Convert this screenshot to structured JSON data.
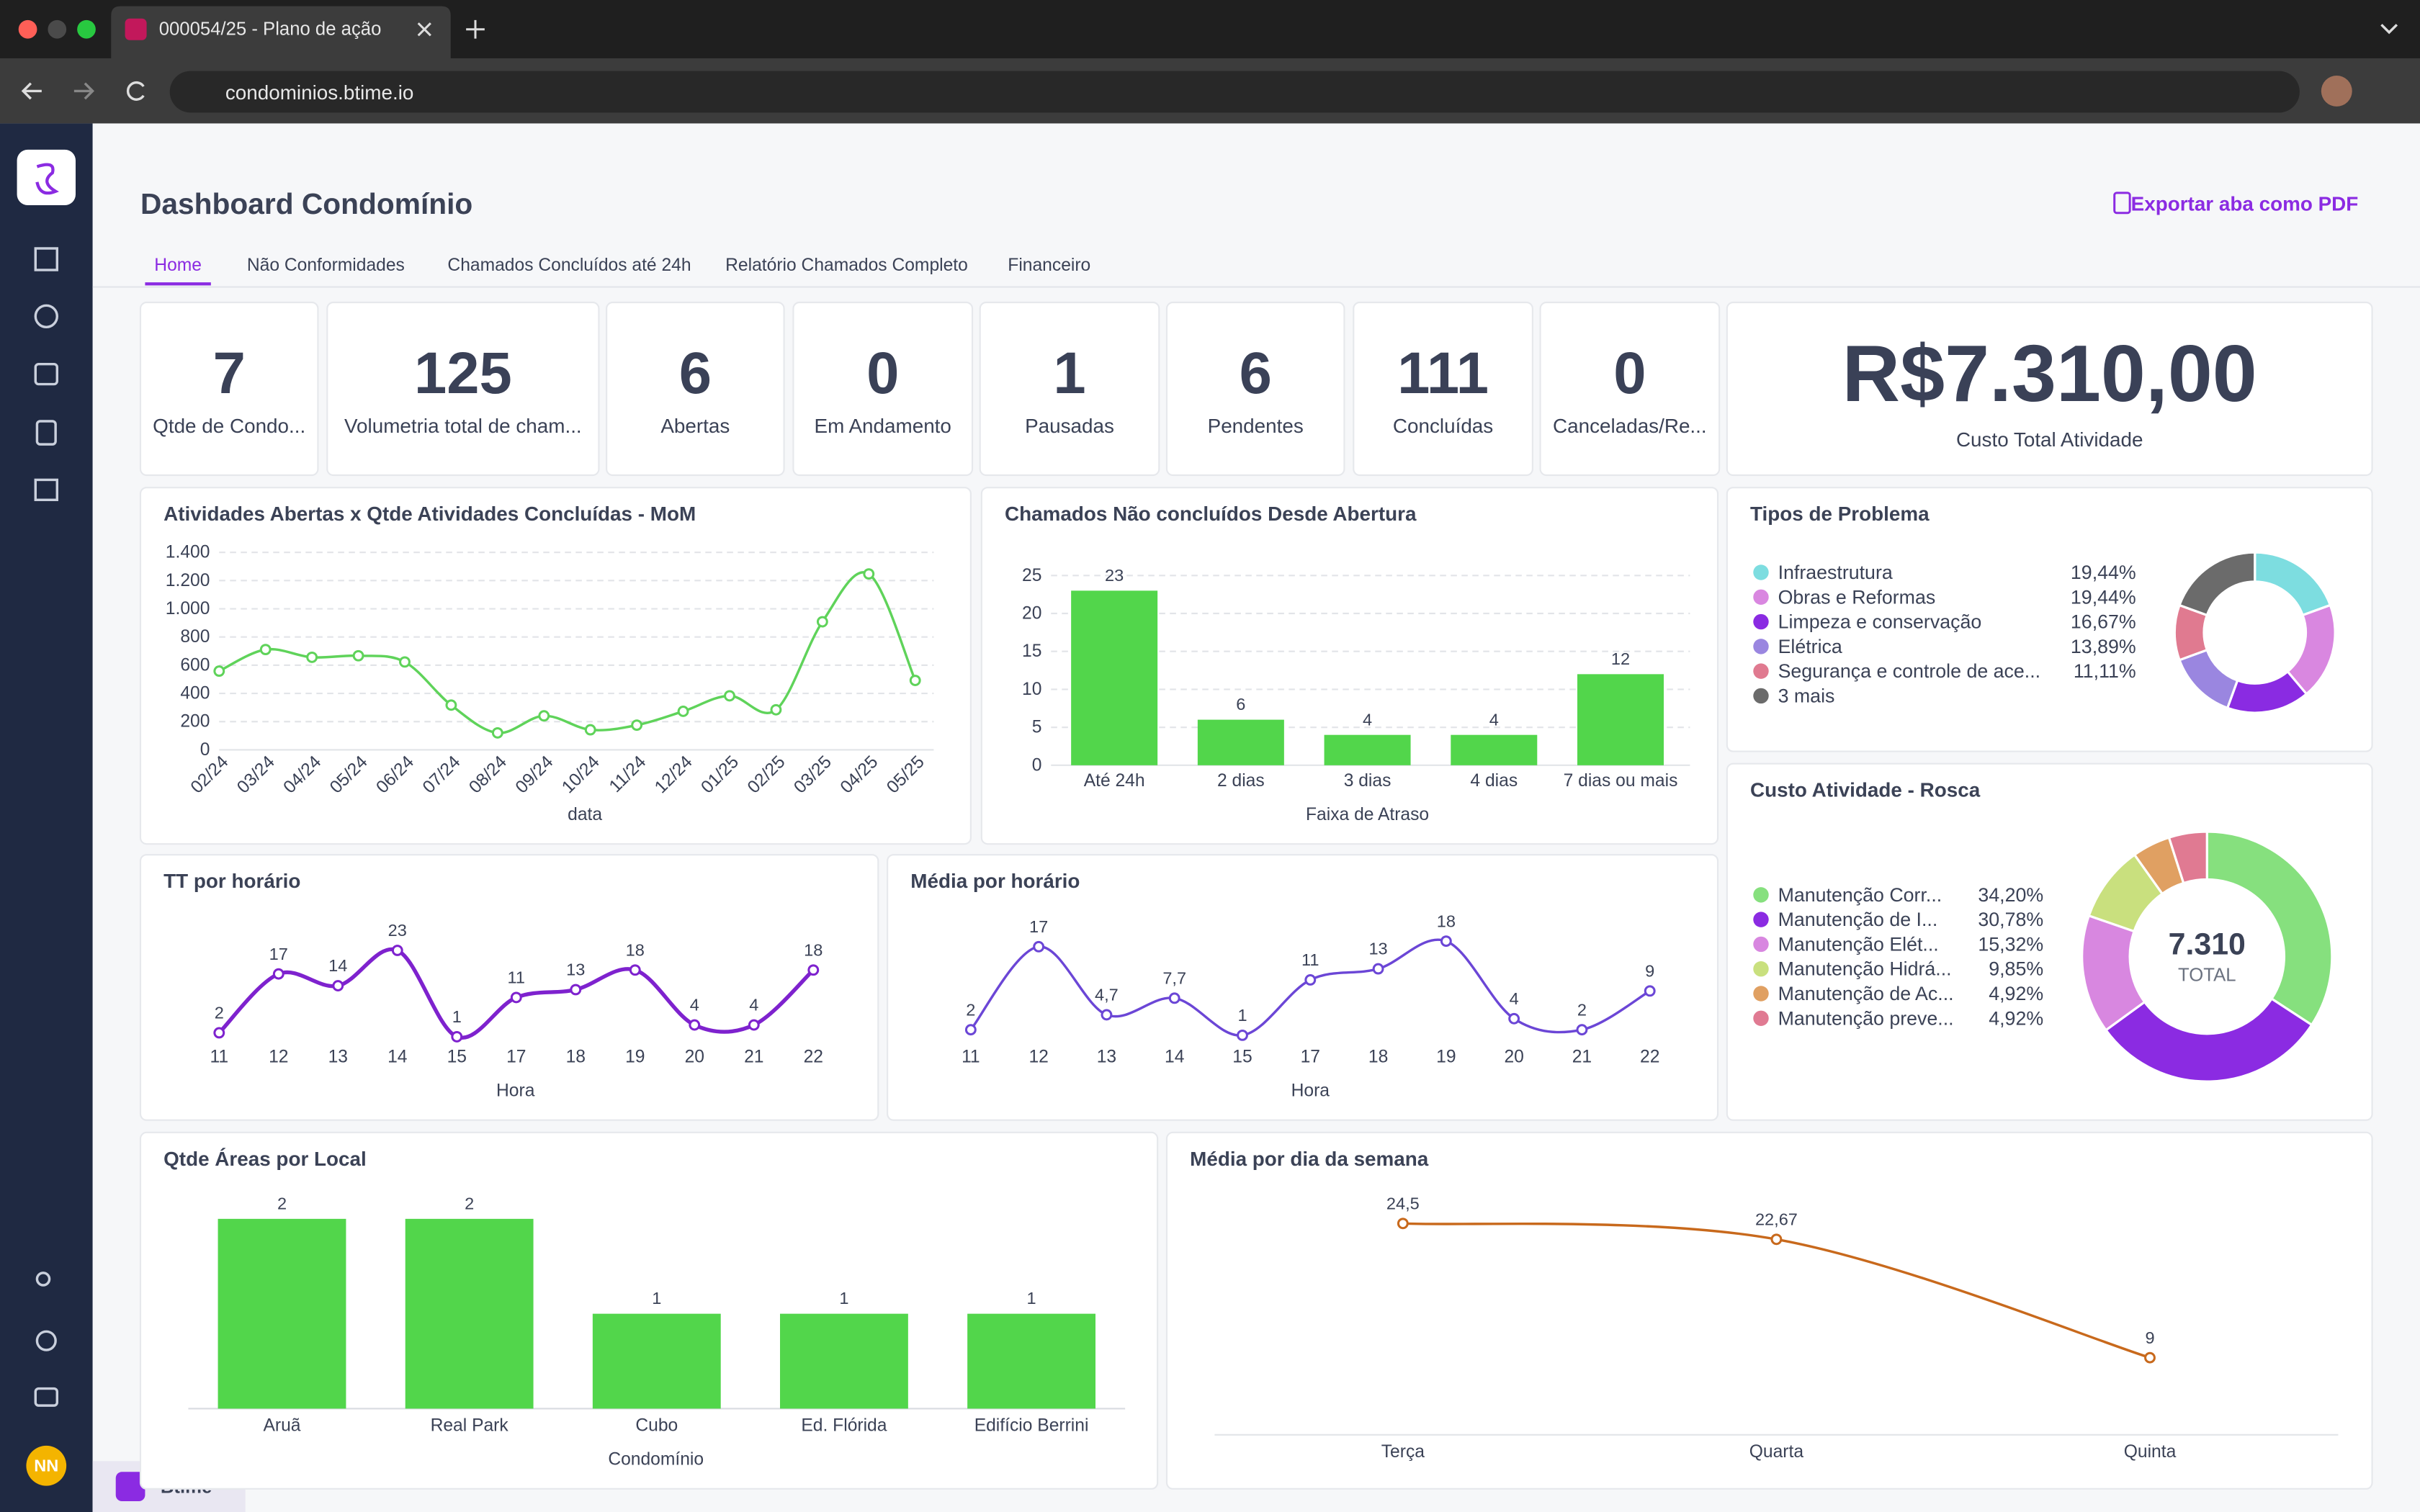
{
  "browser": {
    "tab_title": "000054/25 - Plano de ação",
    "url": "condominios.btime.io"
  },
  "sidebar": {
    "avatar": "NN",
    "workspace": "Btime"
  },
  "header": {
    "title": "Dashboard Condomínio",
    "export": "Exportar aba como PDF"
  },
  "tabs": [
    "Home",
    "Não Conformidades",
    "Chamados Concluídos até 24h",
    "Relatório Chamados Completo",
    "Financeiro"
  ],
  "active_tab": 0,
  "kpis": [
    {
      "value": 7,
      "label": "Qtde de Condo..."
    },
    {
      "value": 125,
      "label": "Volumetria total de cham..."
    },
    {
      "value": 6,
      "label": "Abertas"
    },
    {
      "value": 0,
      "label": "Em Andamento"
    },
    {
      "value": 1,
      "label": "Pausadas"
    },
    {
      "value": 6,
      "label": "Pendentes"
    },
    {
      "value": 111,
      "label": "Concluídas"
    },
    {
      "value": 0,
      "label": "Canceladas/Re..."
    },
    {
      "value": "R$7.310,00",
      "label": "Custo Total Atividade"
    }
  ],
  "charts": [
    {
      "type": "line",
      "title": "Atividades Abertas x Qtde Atividades Concluídas - MoM",
      "x_label": "data",
      "categories": [
        "02/24",
        "03/24",
        "04/24",
        "05/24",
        "06/24",
        "07/24",
        "08/24",
        "09/24",
        "10/24",
        "11/24",
        "12/24",
        "01/25",
        "02/25",
        "03/25",
        "04/25",
        "05/25"
      ],
      "values": [
        558,
        711,
        656,
        667,
        623,
        317,
        120,
        241,
        142,
        175,
        273,
        383,
        284,
        908,
        1247,
        492
      ],
      "color": "#5fd35a",
      "ylim": [
        0,
        1400
      ],
      "yticks": [
        0,
        200,
        400,
        600,
        800,
        {
          "value": 1000,
          "label": "1.000"
        },
        {
          "value": 1200,
          "label": "1.200"
        },
        {
          "value": 1400,
          "label": "1.400"
        }
      ],
      "grid": true,
      "data_labels": false
    },
    {
      "type": "bar",
      "title": "Chamados Não concluídos Desde Abertura",
      "x_label": "Faixa de Atraso",
      "categories": [
        "Até 24h",
        "2 dias",
        "3 dias",
        "4 dias",
        "7 dias ou mais"
      ],
      "values": [
        23,
        6,
        4,
        4,
        12
      ],
      "color": "#52d64b",
      "ylim": [
        0,
        25
      ],
      "yticks": [
        0,
        5,
        10,
        15,
        20,
        25
      ],
      "grid": true,
      "data_labels": true
    },
    {
      "type": "donut",
      "title": "Tipos de Problema",
      "categories": [
        "Infraestrutura",
        "Obras e Reformas",
        "Limpeza e conservação",
        "Elétrica",
        "Segurança e controle de ace...",
        "3 mais"
      ],
      "values": [
        19.44,
        19.44,
        16.67,
        13.89,
        11.11,
        19.45
      ],
      "value_labels": [
        "19,44%",
        "19,44%",
        "16,67%",
        "13,89%",
        "11,11%",
        null
      ],
      "colors": [
        "#7ddde0",
        "#d987e0",
        "#8a2be2",
        "#9a86e0",
        "#e07a90",
        "#6b6b6b"
      ]
    },
    {
      "type": "line",
      "title": "TT por horário",
      "x_label": "Hora",
      "categories": [
        "11",
        "12",
        "13",
        "14",
        "15",
        "17",
        "18",
        "19",
        "20",
        "21",
        "22"
      ],
      "values": [
        2,
        17,
        14,
        23,
        1,
        11,
        13,
        18,
        4,
        4,
        18
      ],
      "color": "#7e22ce",
      "data_labels": true
    },
    {
      "type": "line",
      "title": "Média por horário",
      "x_label": "Hora",
      "categories": [
        "11",
        "12",
        "13",
        "14",
        "15",
        "17",
        "18",
        "19",
        "20",
        "21",
        "22"
      ],
      "values": [
        2,
        17,
        4.7,
        7.7,
        1,
        11,
        13,
        18,
        4,
        2,
        9
      ],
      "value_labels": [
        "2",
        "17",
        "4,7",
        "7,7",
        "1",
        "11",
        "13",
        "18",
        "4",
        "2",
        "9"
      ],
      "color": "#6b46d6",
      "data_labels": true
    },
    {
      "type": "donut",
      "title": "Custo Atividade - Rosca",
      "center_value": "7.310",
      "center_label": "TOTAL",
      "categories": [
        "Manutenção Corr...",
        "Manutenção de I...",
        "Manutenção Elét...",
        "Manutenção Hidrá...",
        "Manutenção de Ac...",
        "Manutenção preve..."
      ],
      "values": [
        34.2,
        30.78,
        15.32,
        9.85,
        4.92,
        4.92
      ],
      "value_labels": [
        "34,20%",
        "30,78%",
        "15,32%",
        "9,85%",
        "4,92%",
        "4,92%"
      ],
      "colors": [
        "#86e07e",
        "#8b2be2",
        "#d887e0",
        "#c9e07e",
        "#e0a062",
        "#e07a92"
      ]
    },
    {
      "type": "bar",
      "title": "Qtde Áreas por Local",
      "x_label": "Condomínio",
      "categories": [
        "Aruã",
        "Real Park",
        "Cubo",
        "Ed. Flórida",
        "Edifício Berrini"
      ],
      "values": [
        2,
        2,
        1,
        1,
        1
      ],
      "color": "#52d64b",
      "data_labels": true
    },
    {
      "type": "line",
      "title": "Média por dia da semana",
      "categories": [
        "Terça",
        "Quarta",
        "Quinta"
      ],
      "values": [
        24.5,
        22.67,
        9
      ],
      "value_labels": [
        "24,5",
        "22,67",
        "9"
      ],
      "color": "#c8691c",
      "data_labels": true
    }
  ]
}
